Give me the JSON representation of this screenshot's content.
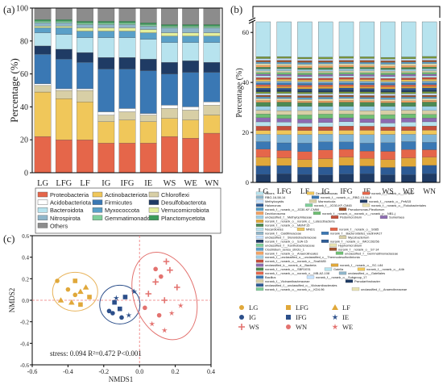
{
  "chart_data": [
    {
      "panel": "(a)",
      "type": "stacked-bar",
      "ylabel": "Percentage (%)",
      "ylim": [
        0,
        100
      ],
      "yticks": [
        0,
        20,
        40,
        60,
        80,
        100
      ],
      "categories": [
        "LG",
        "LFG",
        "LF",
        "IG",
        "IFG",
        "IE",
        "WS",
        "WE",
        "WN"
      ],
      "series": [
        {
          "name": "Proteobacteria",
          "color": "#e5664a",
          "values": [
            22,
            20,
            20,
            18,
            18,
            18,
            22,
            21,
            24
          ]
        },
        {
          "name": "Actinobacteriota",
          "color": "#f0c75a",
          "values": [
            27,
            25,
            23,
            13,
            14,
            13,
            11,
            11,
            11
          ]
        },
        {
          "name": "Chloroflexi",
          "color": "#d8cfa6",
          "values": [
            4,
            5,
            7,
            4,
            5,
            4,
            6,
            6,
            6
          ]
        },
        {
          "name": "Acidobacteriota",
          "color": "#ffffff",
          "values": [
            1,
            1,
            1,
            2,
            2,
            1,
            2,
            2,
            2
          ]
        },
        {
          "name": "Firmicutes",
          "color": "#3a78b4",
          "values": [
            18,
            18,
            16,
            26,
            24,
            26,
            19,
            21,
            18
          ]
        },
        {
          "name": "Desulfobacterota",
          "color": "#1f3b64",
          "values": [
            5,
            6,
            6,
            7,
            7,
            7,
            7,
            7,
            6
          ]
        },
        {
          "name": "Bacteroidota",
          "color": "#b7e3ee",
          "values": [
            8,
            9,
            9,
            12,
            12,
            12,
            12,
            11,
            12
          ]
        },
        {
          "name": "Myxococcota",
          "color": "#5aa0c8",
          "values": [
            3,
            4,
            4,
            4,
            4,
            4,
            4,
            4,
            4
          ]
        },
        {
          "name": "Verrucomicrobiota",
          "color": "#e4ef9c",
          "values": [
            1,
            1,
            2,
            2,
            2,
            2,
            2,
            2,
            2
          ]
        },
        {
          "name": "Nitrospirota",
          "color": "#8fb5c9",
          "values": [
            2,
            2,
            2,
            2,
            2,
            2,
            3,
            3,
            3
          ]
        },
        {
          "name": "Gemmatimonadota",
          "color": "#7fcf9a",
          "values": [
            1,
            1,
            1,
            1,
            1,
            1,
            1,
            1,
            1
          ]
        },
        {
          "name": "Planctomycetota",
          "color": "#3c9a5a",
          "values": [
            1,
            1,
            1,
            1,
            1,
            1,
            1,
            1,
            1
          ]
        },
        {
          "name": "Others",
          "color": "#8c8c8c",
          "values": [
            7,
            7,
            8,
            8,
            8,
            9,
            10,
            10,
            10
          ]
        }
      ]
    },
    {
      "panel": "(b)",
      "type": "stacked-bar",
      "ylabel": "Percentage (%)",
      "yticks": [
        0,
        20,
        40,
        60
      ],
      "axis_break": true,
      "categories": [
        "LG",
        "LFG",
        "LF",
        "IG",
        "IFG",
        "IE",
        "WS",
        "WE",
        "WN"
      ],
      "stack_totals": [
        60,
        62,
        61,
        60,
        60,
        62,
        58,
        58,
        57
      ],
      "legend": [
        "Others",
        "Dechloromonas",
        "norank_f__norank_o__OPB41",
        "RBG-16-58-14",
        "norank_f__norank_o__RBG-13-54-9",
        "Methylocystis",
        "Marmoricola",
        "norank_f__norank_o__PeM15",
        "Halomonas",
        "norank_f__JG30-KF-CM45",
        "norank_f__norank_o__Rokubacteriales",
        "norank_f__norank_o__JG30-KF-CM66",
        "Pseudomonas-Pleoticeum",
        "Dechlorosoma",
        "norank_f__norank_o__norank_c__norank_p__NB1-j",
        "unclassified_f__Methylophilaceae",
        "Pedomicrobium",
        "Sumerlaea",
        "norank_f__norank_o__norank_c__Latescibacteria",
        "norank_f__norank_o__MBNT15",
        "Nocardioides",
        "MND1",
        "norank_f__norank_o__S085",
        "norank_f__Caldilineaceae",
        "norank_f__Bacteroidetes_vadinHA17",
        "unclassified_f__Steroidobacteraceae",
        "Mycobacterium",
        "norank_f__norank_o__SJA-15",
        "norank_f__norank_o__IMCC26256",
        "unclassified_f__Xanthobacteraceae",
        "Hyphomicrobium",
        "Clostridium_sensu_stricto_1",
        "norank_f__norank_o__S7-14",
        "norank_f__norank_o__Anaerolineales",
        "unclassified_f__Gemmatimonadaceae",
        "norank_f__unclassified_o__unclassified_c__Thermodesulfovibrionia",
        "norank_f__norank_o__norank_c__Sva0485",
        "unclassified_k__norank_d__Bacteria",
        "norank_f__norank_o__SC-I-84",
        "norank_f__norank_o__SBR1031",
        "Gaiella",
        "norank_f__norank_o__A4b",
        "norank_f__norank_o__norank_c__MB-A2-108",
        "unclassified_o__Gaiellales",
        "Bacillus",
        "norank_f__norank_o__Subgroup_17",
        "norank_f__Vicinamibacteraceae",
        "Pseudarthrobacter",
        "unclassified_f__unclassified_o__Vicinamibacterales",
        "norank_f__norank_o__norank_c__KD4-96",
        "unclassified_f__Anaerolineaceae"
      ]
    },
    {
      "panel": "(c)",
      "type": "scatter",
      "xlabel": "NMDS1",
      "ylabel": "NMDS2",
      "xlim": [
        -0.6,
        0.4
      ],
      "ylim": [
        -0.6,
        0.6
      ],
      "xticks": [
        -0.6,
        -0.4,
        -0.2,
        0.0,
        0.2,
        0.4
      ],
      "yticks": [
        -0.6,
        -0.4,
        -0.2,
        0.0,
        0.2,
        0.4,
        0.6
      ],
      "annotation": "stress: 0.094   R²=0.472   P<0.001",
      "groups": [
        {
          "name": "LG",
          "marker": "circle",
          "color": "#e0a83a",
          "points": [
            [
              -0.46,
              0.18
            ],
            [
              -0.4,
              0.1
            ],
            [
              -0.36,
              0.05
            ]
          ]
        },
        {
          "name": "LFG",
          "marker": "square",
          "color": "#e0a83a",
          "points": [
            [
              -0.36,
              0.18
            ],
            [
              -0.33,
              -0.04
            ],
            [
              -0.28,
              0.03
            ]
          ]
        },
        {
          "name": "LF",
          "marker": "triangle",
          "color": "#e0a83a",
          "points": [
            [
              -0.44,
              0.0
            ],
            [
              -0.38,
              -0.02
            ],
            [
              -0.3,
              0.12
            ],
            [
              -0.33,
              0.08
            ]
          ]
        },
        {
          "name": "IG",
          "marker": "circle",
          "color": "#2c4f8a",
          "points": [
            [
              -0.17,
              -0.1
            ],
            [
              -0.15,
              -0.12
            ],
            [
              -0.1,
              -0.16
            ]
          ]
        },
        {
          "name": "IFG",
          "marker": "square",
          "color": "#2c4f8a",
          "points": [
            [
              -0.14,
              -0.02
            ],
            [
              -0.11,
              -0.08
            ],
            [
              -0.08,
              0.03
            ]
          ]
        },
        {
          "name": "IE",
          "marker": "star",
          "color": "#2c4f8a",
          "points": [
            [
              -0.03,
              0.08
            ],
            [
              -0.13,
              0.02
            ],
            [
              -0.06,
              -0.14
            ]
          ]
        },
        {
          "name": "WS",
          "marker": "cross",
          "color": "#e3726f",
          "points": [
            [
              0.15,
              0.36
            ],
            [
              0.17,
              0.28
            ],
            [
              0.09,
              0.17
            ],
            [
              0.21,
              0.12
            ],
            [
              0.05,
              0.06
            ],
            [
              0.14,
              0.0
            ]
          ]
        },
        {
          "name": "WN",
          "marker": "circle",
          "color": "#e3726f",
          "points": [
            [
              0.09,
              0.29
            ],
            [
              0.12,
              0.22
            ],
            [
              0.03,
              -0.07
            ],
            [
              0.11,
              -0.14
            ]
          ]
        },
        {
          "name": "WE",
          "marker": "star",
          "color": "#e3726f",
          "points": [
            [
              0.07,
              -0.22
            ],
            [
              0.14,
              -0.28
            ],
            [
              0.18,
              -0.12
            ],
            [
              0.23,
              -0.05
            ]
          ]
        }
      ]
    }
  ]
}
